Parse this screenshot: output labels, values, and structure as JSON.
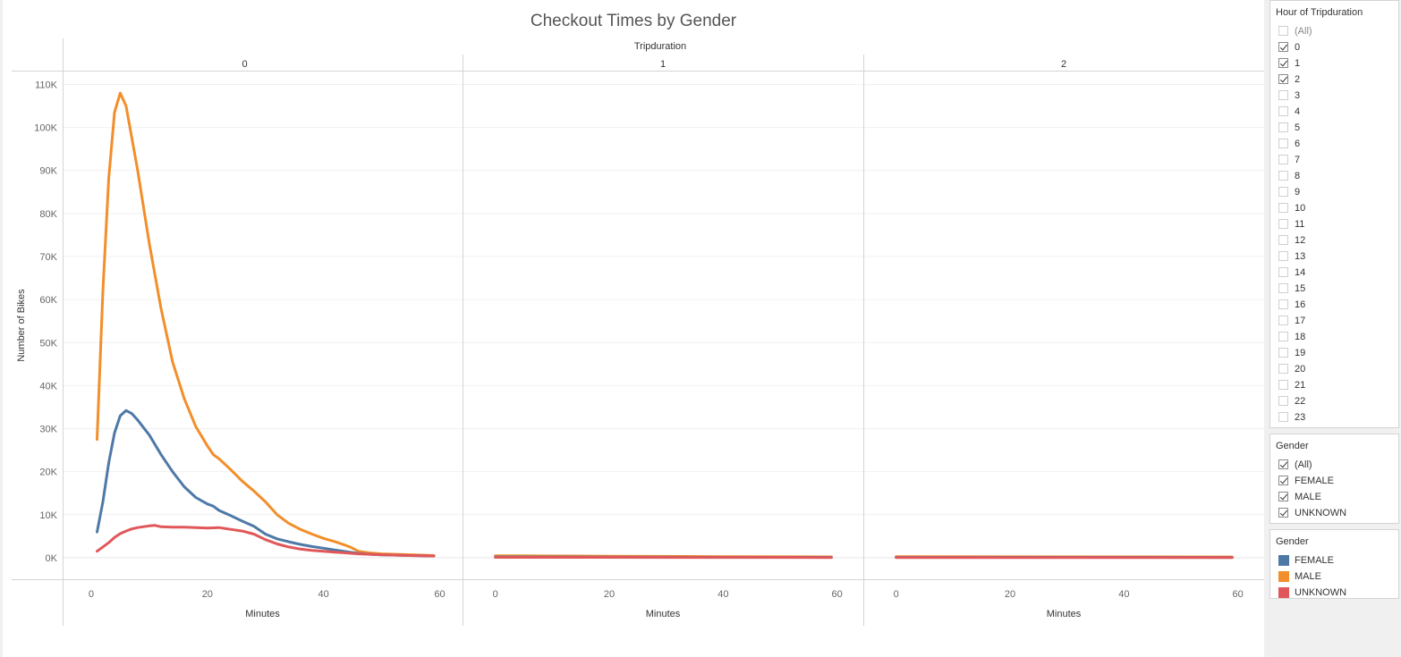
{
  "chart_data": {
    "type": "line",
    "title": "Checkout Times by Gender",
    "column_header": "Tripduration",
    "ylabel": "Number of Bikes",
    "xlabel": "Minutes",
    "panels": [
      {
        "label": "0",
        "series": [
          {
            "name": "FEMALE",
            "color": "#4e79a7",
            "x": [
              1,
              2,
              3,
              4,
              5,
              6,
              7,
              8,
              10,
              12,
              14,
              16,
              18,
              20,
              21,
              22,
              24,
              26,
              28,
              30,
              32,
              34,
              36,
              38,
              40,
              42,
              44,
              46,
              48,
              50,
              55,
              59
            ],
            "y": [
              6000,
              13000,
              22000,
              29000,
              33000,
              34200,
              33500,
              32000,
              28500,
              24000,
              20000,
              16500,
              14000,
              12500,
              12000,
              11000,
              9800,
              8500,
              7300,
              5500,
              4400,
              3700,
              3100,
              2600,
              2200,
              1800,
              1400,
              1000,
              800,
              650,
              500,
              400
            ]
          },
          {
            "name": "MALE",
            "color": "#f28e2b",
            "x": [
              1,
              2,
              3,
              4,
              5,
              6,
              8,
              10,
              12,
              14,
              16,
              18,
              20,
              21,
              22,
              24,
              26,
              28,
              30,
              32,
              34,
              36,
              38,
              40,
              42,
              44,
              45,
              46,
              48,
              50,
              55,
              59
            ],
            "y": [
              27500,
              62000,
              88000,
              103500,
              108000,
              105000,
              90000,
              73000,
              58000,
              45500,
              37000,
              30500,
              26000,
              24000,
              23000,
              20500,
              17800,
              15500,
              13000,
              10000,
              8000,
              6600,
              5500,
              4500,
              3700,
              2800,
              2200,
              1500,
              1100,
              900,
              700,
              500
            ]
          },
          {
            "name": "UNKNOWN",
            "color": "#e15759",
            "x": [
              1,
              2,
              3,
              4,
              5,
              6,
              7,
              8,
              10,
              11,
              12,
              14,
              16,
              18,
              20,
              22,
              23,
              24,
              26,
              28,
              30,
              32,
              34,
              36,
              38,
              40,
              42,
              44,
              46,
              50,
              55,
              59
            ],
            "y": [
              1500,
              2500,
              3500,
              4700,
              5600,
              6200,
              6700,
              7000,
              7400,
              7500,
              7200,
              7100,
              7100,
              7000,
              6900,
              7000,
              6800,
              6600,
              6200,
              5500,
              4200,
              3200,
              2500,
              2000,
              1700,
              1500,
              1300,
              1100,
              900,
              700,
              500,
              400
            ]
          }
        ]
      },
      {
        "label": "1",
        "series": [
          {
            "name": "FEMALE",
            "color": "#4e79a7",
            "x": [
              0,
              20,
              40,
              59
            ],
            "y": [
              200,
              150,
              100,
              80
            ]
          },
          {
            "name": "MALE",
            "color": "#f28e2b",
            "x": [
              0,
              20,
              40,
              59
            ],
            "y": [
              450,
              350,
              250,
              200
            ]
          },
          {
            "name": "UNKNOWN",
            "color": "#e15759",
            "x": [
              0,
              20,
              40,
              59
            ],
            "y": [
              100,
              80,
              60,
              50
            ]
          }
        ]
      },
      {
        "label": "2",
        "series": [
          {
            "name": "FEMALE",
            "color": "#4e79a7",
            "x": [
              0,
              20,
              40,
              59
            ],
            "y": [
              100,
              90,
              80,
              70
            ]
          },
          {
            "name": "MALE",
            "color": "#f28e2b",
            "x": [
              0,
              20,
              40,
              59
            ],
            "y": [
              250,
              220,
              200,
              180
            ]
          },
          {
            "name": "UNKNOWN",
            "color": "#e15759",
            "x": [
              0,
              20,
              40,
              59
            ],
            "y": [
              50,
              40,
              30,
              30
            ]
          }
        ]
      }
    ],
    "xlim": [
      -2,
      61
    ],
    "ylim": [
      -5000,
      113000
    ],
    "xticks": [
      0,
      20,
      40,
      60
    ],
    "yticks": [
      0,
      10000,
      20000,
      30000,
      40000,
      50000,
      60000,
      70000,
      80000,
      90000,
      100000,
      110000
    ],
    "ytick_labels": [
      "0K",
      "10K",
      "20K",
      "30K",
      "40K",
      "50K",
      "60K",
      "70K",
      "80K",
      "90K",
      "100K",
      "110K"
    ],
    "grid": "horizontal",
    "legend_placement": "right"
  },
  "filters": {
    "hour": {
      "title": "Hour of Tripduration",
      "items": [
        {
          "label": "(All)",
          "checked": false,
          "muted": true
        },
        {
          "label": "0",
          "checked": true
        },
        {
          "label": "1",
          "checked": true
        },
        {
          "label": "2",
          "checked": true
        },
        {
          "label": "3",
          "checked": false
        },
        {
          "label": "4",
          "checked": false
        },
        {
          "label": "5",
          "checked": false
        },
        {
          "label": "6",
          "checked": false
        },
        {
          "label": "7",
          "checked": false
        },
        {
          "label": "8",
          "checked": false
        },
        {
          "label": "9",
          "checked": false
        },
        {
          "label": "10",
          "checked": false
        },
        {
          "label": "11",
          "checked": false
        },
        {
          "label": "12",
          "checked": false
        },
        {
          "label": "13",
          "checked": false
        },
        {
          "label": "14",
          "checked": false
        },
        {
          "label": "15",
          "checked": false
        },
        {
          "label": "16",
          "checked": false
        },
        {
          "label": "17",
          "checked": false
        },
        {
          "label": "18",
          "checked": false
        },
        {
          "label": "19",
          "checked": false
        },
        {
          "label": "20",
          "checked": false
        },
        {
          "label": "21",
          "checked": false
        },
        {
          "label": "22",
          "checked": false
        },
        {
          "label": "23",
          "checked": false
        }
      ]
    },
    "gender": {
      "title": "Gender",
      "items": [
        {
          "label": "(All)",
          "checked": true
        },
        {
          "label": "FEMALE",
          "checked": true
        },
        {
          "label": "MALE",
          "checked": true
        },
        {
          "label": "UNKNOWN",
          "checked": true
        }
      ]
    }
  },
  "legend": {
    "title": "Gender",
    "items": [
      {
        "label": "FEMALE",
        "color": "#4e79a7"
      },
      {
        "label": "MALE",
        "color": "#f28e2b"
      },
      {
        "label": "UNKNOWN",
        "color": "#e15759"
      }
    ]
  }
}
